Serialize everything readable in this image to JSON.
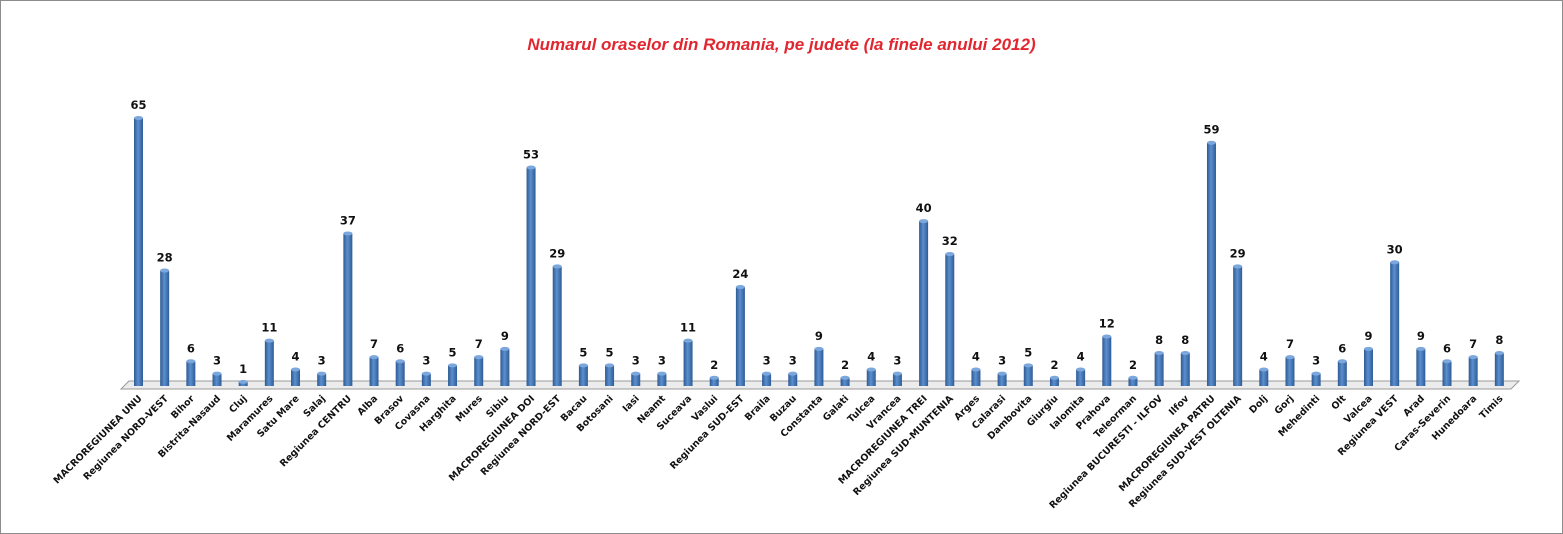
{
  "chart_data": {
    "type": "bar",
    "title": "Numarul oraselor din Romania, pe judete (la finele anului 2012)",
    "xlabel": "",
    "ylabel": "",
    "ylim": [
      0,
      65
    ],
    "grid": false,
    "legend": "none",
    "bar_color": "#4a7ebb",
    "title_color": "#e2262f",
    "categories": [
      "MACROREGIUNEA UNU",
      "Regiunea NORD-VEST",
      "Bihor",
      "Bistrita-Nasaud",
      "Cluj",
      "Maramures",
      "Satu Mare",
      "Salaj",
      "Regiunea CENTRU",
      "Alba",
      "Brasov",
      "Covasna",
      "Harghita",
      "Mures",
      "Sibiu",
      "MACROREGIUNEA DOI",
      "Regiunea NORD-EST",
      "Bacau",
      "Botosani",
      "Iasi",
      "Neamt",
      "Suceava",
      "Vaslui",
      "Regiunea SUD-EST",
      "Braila",
      "Buzau",
      "Constanta",
      "Galati",
      "Tulcea",
      "Vrancea",
      "MACROREGIUNEA TREI",
      "Regiunea SUD-MUNTENIA",
      "Arges",
      "Calarasi",
      "Dambovita",
      "Giurgiu",
      "Ialomita",
      "Prahova",
      "Teleorman",
      "Regiunea BUCURESTI - ILFOV",
      "Ilfov",
      "MACROREGIUNEA PATRU",
      "Regiunea SUD-VEST OLTENIA",
      "Dolj",
      "Gorj",
      "Mehedinti",
      "Olt",
      "Valcea",
      "Regiunea VEST",
      "Arad",
      "Caras-Severin",
      "Hunedoara",
      "Timis"
    ],
    "values": [
      65,
      28,
      6,
      3,
      1,
      11,
      4,
      3,
      37,
      7,
      6,
      3,
      5,
      7,
      9,
      53,
      29,
      5,
      5,
      3,
      3,
      11,
      2,
      24,
      3,
      3,
      9,
      2,
      4,
      3,
      40,
      32,
      4,
      3,
      5,
      2,
      4,
      12,
      2,
      8,
      8,
      59,
      29,
      4,
      7,
      3,
      6,
      9,
      30,
      9,
      6,
      7,
      8
    ]
  }
}
